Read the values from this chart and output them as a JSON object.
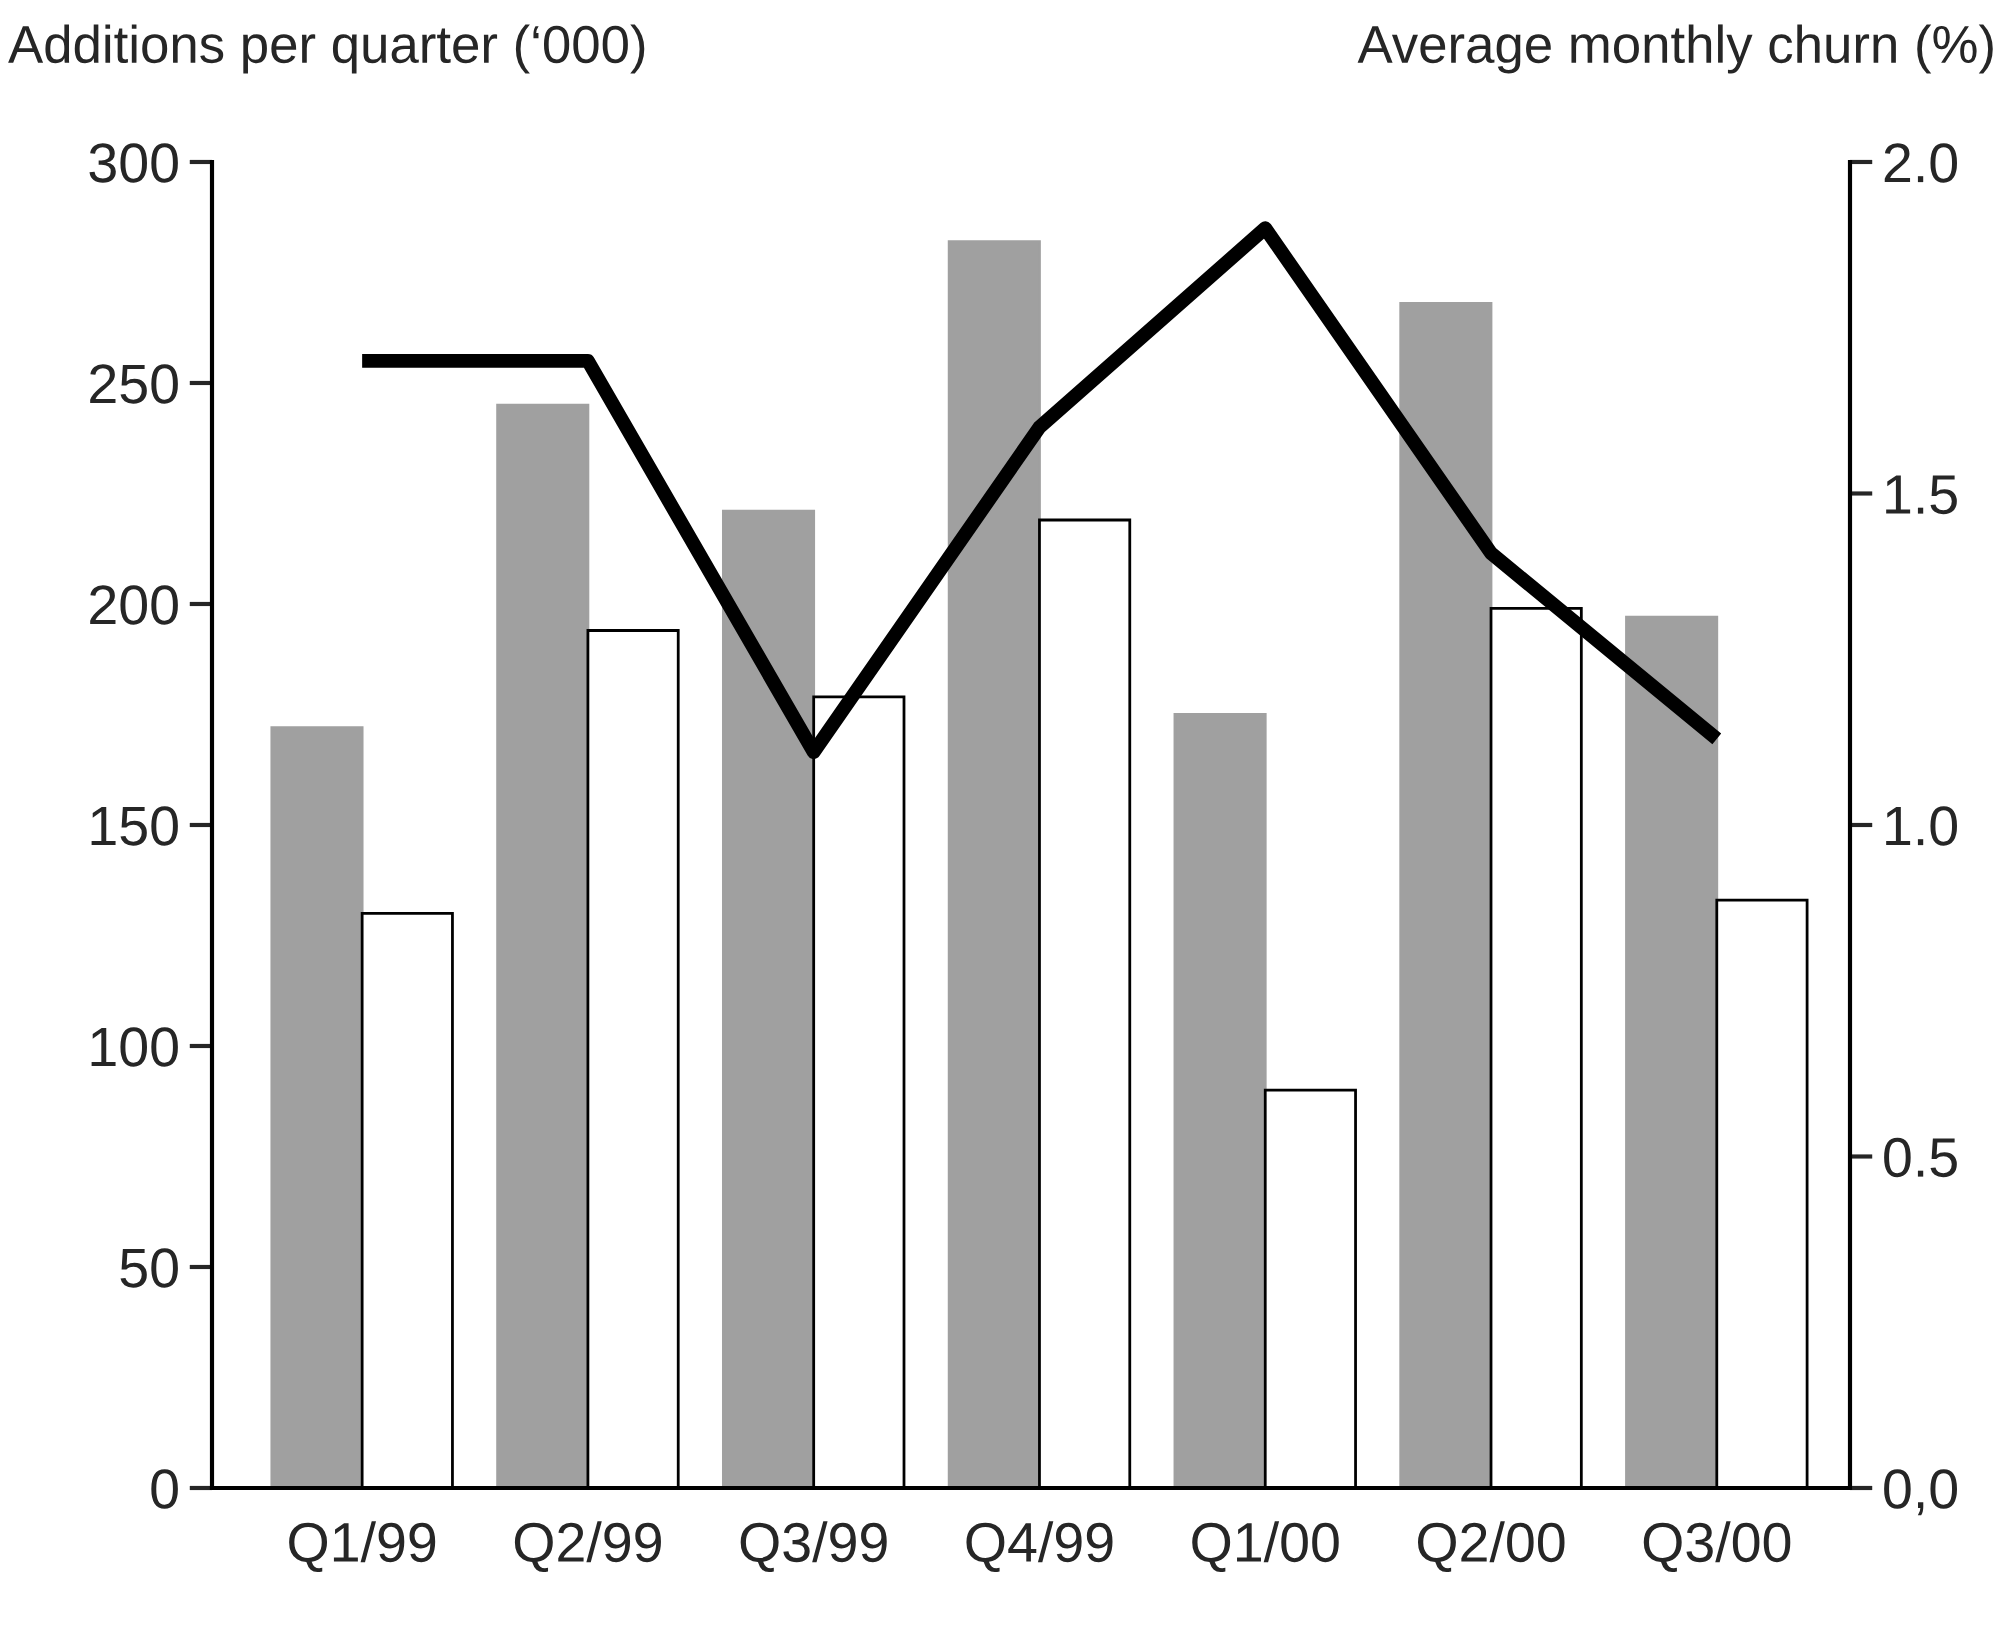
{
  "chart_data": {
    "type": "bar",
    "ylabel": "Additions per quarter (‘000)",
    "y2label": "Average monthly churn (%)",
    "categories": [
      "Q1/99",
      "Q2/99",
      "Q3/99",
      "Q4/99",
      "Q1/00",
      "Q2/00",
      "Q3/00"
    ],
    "series": [
      {
        "color": "#a0a0a0",
        "values": [
          172,
          245,
          221,
          282,
          175,
          268,
          197
        ]
      },
      {
        "color": "#ffffff",
        "values": [
          130,
          194,
          179,
          219,
          90,
          199,
          133
        ]
      },
      {
        "type": "line",
        "axis": "y2",
        "color": "#000000",
        "values": [
          1.7,
          1.7,
          1.11,
          1.6,
          1.9,
          1.41,
          1.13
        ]
      }
    ],
    "ylim": [
      0,
      300
    ],
    "yticks": [
      0,
      50,
      100,
      150,
      200,
      250,
      300
    ],
    "y2lim": [
      0,
      2.0
    ],
    "y2ticks": [
      {
        "value": 0,
        "label": "0,0"
      },
      {
        "value": 0.5,
        "label": "0.5"
      },
      {
        "value": 1.0,
        "label": "1.0"
      },
      {
        "value": 1.5,
        "label": "1.5"
      },
      {
        "value": 2.0,
        "label": "2.0"
      }
    ],
    "grid": false,
    "legend": false,
    "marker": "none",
    "line_style": "solid"
  }
}
